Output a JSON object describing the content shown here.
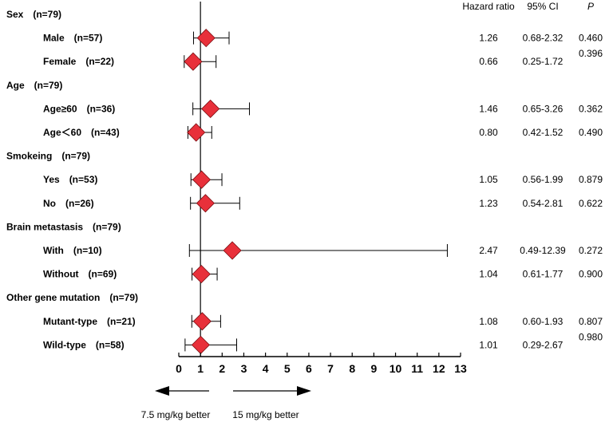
{
  "chart_data": {
    "type": "forest",
    "columns": {
      "hr": "Hazard ratio",
      "ci": "95% CI",
      "p": "P"
    },
    "axis": {
      "min": 0,
      "max": 13,
      "ticks": [
        0,
        1,
        2,
        3,
        4,
        5,
        6,
        7,
        8,
        9,
        10,
        11,
        12,
        13
      ],
      "reference": 1
    },
    "rows": [
      {
        "kind": "group",
        "label": "Sex　(n=79)"
      },
      {
        "kind": "item",
        "label": "Male　(n=57)",
        "hr": 1.26,
        "ci_low": 0.68,
        "ci_high": 2.32,
        "hr_text": "1.26",
        "ci_text": "0.68-2.32",
        "p_text": "0.460"
      },
      {
        "kind": "item",
        "label": "Female　(n=22)",
        "hr": 0.66,
        "ci_low": 0.25,
        "ci_high": 1.72,
        "hr_text": "0.66",
        "ci_text": "0.25-1.72",
        "p_text": "0.396"
      },
      {
        "kind": "group",
        "label": "Age　(n=79)"
      },
      {
        "kind": "item",
        "label": "Age≥60　(n=36)",
        "hr": 1.46,
        "ci_low": 0.65,
        "ci_high": 3.26,
        "hr_text": "1.46",
        "ci_text": "0.65-3.26",
        "p_text": "0.362"
      },
      {
        "kind": "item",
        "label": "Age＜60　(n=43)",
        "hr": 0.8,
        "ci_low": 0.42,
        "ci_high": 1.52,
        "hr_text": "0.80",
        "ci_text": "0.42-1.52",
        "p_text": "0.490"
      },
      {
        "kind": "group",
        "label": "Smokeing　(n=79)"
      },
      {
        "kind": "item",
        "label": "Yes　(n=53)",
        "hr": 1.05,
        "ci_low": 0.56,
        "ci_high": 1.99,
        "hr_text": "1.05",
        "ci_text": "0.56-1.99",
        "p_text": "0.879"
      },
      {
        "kind": "item",
        "label": "No　(n=26)",
        "hr": 1.23,
        "ci_low": 0.54,
        "ci_high": 2.81,
        "hr_text": "1.23",
        "ci_text": "0.54-2.81",
        "p_text": "0.622"
      },
      {
        "kind": "group",
        "label": "Brain metastasis　(n=79)"
      },
      {
        "kind": "item",
        "label": "With　(n=10)",
        "hr": 2.47,
        "ci_low": 0.49,
        "ci_high": 12.39,
        "hr_text": "2.47",
        "ci_text": "0.49-12.39",
        "p_text": "0.272"
      },
      {
        "kind": "item",
        "label": "Without　(n=69)",
        "hr": 1.04,
        "ci_low": 0.61,
        "ci_high": 1.77,
        "hr_text": "1.04",
        "ci_text": "0.61-1.77",
        "p_text": "0.900"
      },
      {
        "kind": "group",
        "label": "Other gene mutation　(n=79)"
      },
      {
        "kind": "item",
        "label": "Mutant-type　(n=21)",
        "hr": 1.08,
        "ci_low": 0.6,
        "ci_high": 1.93,
        "hr_text": "1.08",
        "ci_text": "0.60-1.93",
        "p_text": "0.807"
      },
      {
        "kind": "item",
        "label": "Wild-type　(n=58)",
        "hr": 1.01,
        "ci_low": 0.29,
        "ci_high": 2.67,
        "hr_text": "1.01",
        "ci_text": "0.29-2.67",
        "p_text": "0.980"
      }
    ],
    "direction_labels": {
      "left": "7.5 mg/kg better",
      "right": "15 mg/kg better"
    },
    "colors": {
      "marker": "#e8303a",
      "line": "#000000"
    }
  }
}
